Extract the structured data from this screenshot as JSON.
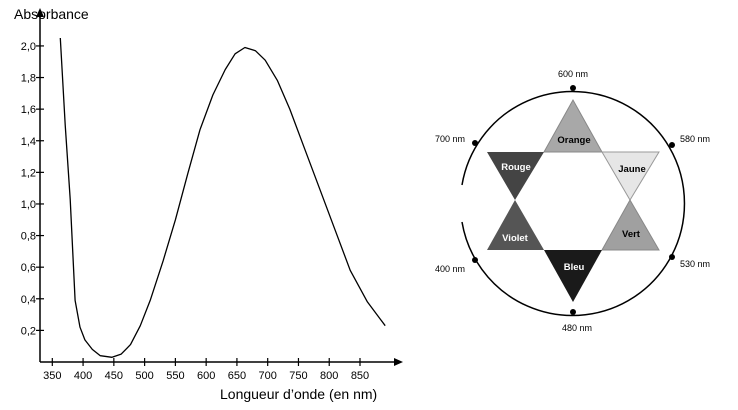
{
  "chart_data": {
    "type": "line",
    "y_label": "Absorbance",
    "x_label": "Longueur d’onde (en nm)",
    "x": [
      363,
      371,
      379,
      387,
      395,
      403,
      415,
      428,
      447,
      462,
      477,
      493,
      509,
      530,
      550,
      570,
      590,
      611,
      631,
      647,
      663,
      680,
      696,
      716,
      736,
      760,
      785,
      810,
      834,
      862,
      891
    ],
    "values": [
      2.05,
      1.5,
      1.03,
      0.39,
      0.22,
      0.14,
      0.08,
      0.04,
      0.03,
      0.05,
      0.11,
      0.23,
      0.39,
      0.64,
      0.9,
      1.19,
      1.47,
      1.69,
      1.85,
      1.95,
      1.99,
      1.97,
      1.91,
      1.78,
      1.6,
      1.35,
      1.09,
      0.83,
      0.58,
      0.38,
      0.23
    ],
    "color": "#000000",
    "xlim": [
      330,
      915
    ],
    "ylim": [
      0,
      2.24
    ],
    "xticks": [
      350,
      400,
      450,
      500,
      550,
      600,
      650,
      700,
      750,
      800,
      850
    ],
    "yticks": [
      {
        "value": 0.2,
        "label": "0,2"
      },
      {
        "value": 0.4,
        "label": "0,4"
      },
      {
        "value": 0.6,
        "label": "0,6"
      },
      {
        "value": 0.8,
        "label": "0,8"
      },
      {
        "value": 1,
        "label": "1,0"
      },
      {
        "value": 1.2,
        "label": "1,2"
      },
      {
        "value": 1.4,
        "label": "1,4"
      },
      {
        "value": 1.6,
        "label": "1,6"
      },
      {
        "value": 1.8,
        "label": "1,8"
      },
      {
        "value": 2,
        "label": "2,0"
      }
    ]
  },
  "color_wheel": {
    "wavelengths": [
      "600 nm",
      "580 nm",
      "530 nm",
      "480 nm",
      "400 nm",
      "700 nm"
    ],
    "colors": [
      "Orange",
      "Jaune",
      "Vert",
      "Bleu",
      "Violet",
      "Rouge"
    ]
  }
}
